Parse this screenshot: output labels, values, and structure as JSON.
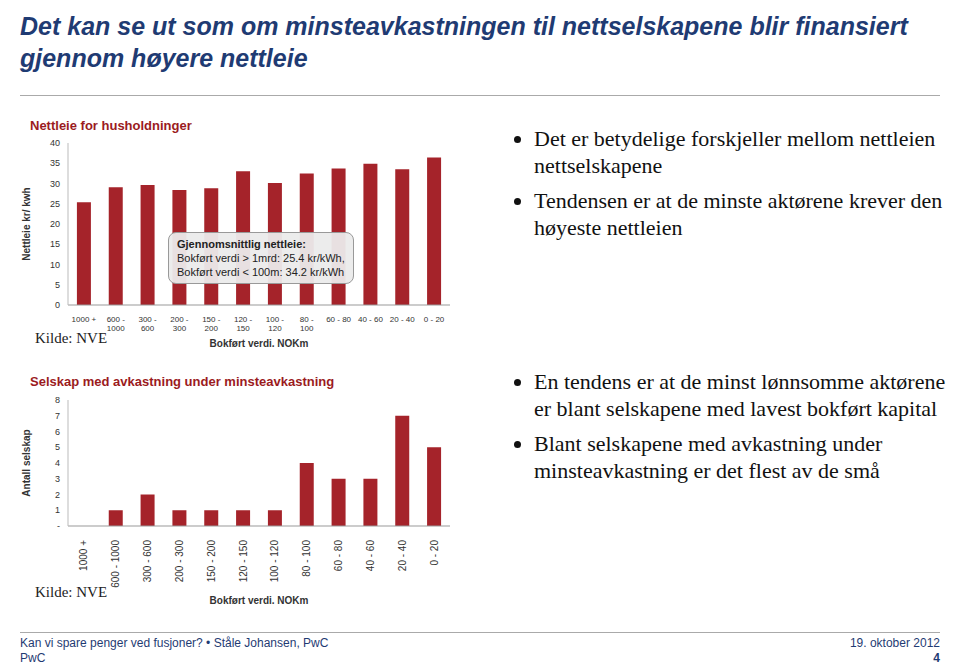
{
  "title": "Det kan se ut som om minsteavkastningen til nettselskapene blir finansiert gjennom høyere nettleie",
  "chart_data": [
    {
      "type": "bar",
      "title": "Nettleie for husholdninger",
      "y_label": "Nettleie kr/ kwh",
      "x_label": "Bokført verdi, NOKm",
      "source": "Kilde: NVE",
      "categories": [
        "1000 +",
        "600 - 1000",
        "300 - 600",
        "200 - 300",
        "150 - 200",
        "120 - 150",
        "100 - 120",
        "80 - 100",
        "60 - 80",
        "40 - 60",
        "20 - 40",
        "0 - 20"
      ],
      "values": [
        25.4,
        29.1,
        29.6,
        28.4,
        28.8,
        33,
        30.1,
        32.5,
        33.7,
        34.9,
        33.5,
        36.4
      ],
      "color": "#a5232a",
      "ylim": [
        0,
        40
      ],
      "yticks": [
        0,
        5,
        10,
        15,
        20,
        25,
        30,
        35,
        40
      ],
      "grid": false,
      "annotation": [
        "Gjennomsnittlig nettleie:",
        "Bokført verdi > 1mrd: 25.4 kr/kWh,",
        "Bokført verdi < 100m: 34.2 kr/kWh"
      ]
    },
    {
      "type": "bar",
      "title": "Selskap med avkastning  under minsteavkastning",
      "y_label": "Antall selskap",
      "x_label": "Bokført verdi, NOKm",
      "source": "Kilde: NVE",
      "categories": [
        "1000 +",
        "600 - 1000",
        "300 - 600",
        "200 - 300",
        "150 - 200",
        "120 - 150",
        "100 - 120",
        "80 - 100",
        "60 - 80",
        "40 - 60",
        "20 - 40",
        "0 - 20"
      ],
      "values": [
        0,
        1,
        2,
        1,
        1,
        1,
        1,
        4,
        3,
        3,
        7,
        5
      ],
      "color": "#a5232a",
      "ylim": [
        0,
        8
      ],
      "yticks": [
        {
          "value": 0,
          "label": "-"
        },
        1,
        2,
        3,
        4,
        5,
        6,
        7,
        8
      ],
      "grid": false
    }
  ],
  "bullets": [
    [
      "Det er betydelige forskjeller mellom nettleien nettselskapene",
      "Tendensen er at de minste aktørene krever den høyeste nettleien"
    ],
    [
      "En tendens er at de minst lønnsomme aktørene er blant selskapene med lavest bokført kapital",
      "Blant selskapene med avkastning under minsteavkastning er det flest av de små"
    ]
  ],
  "footer": {
    "left": "Kan vi spare penger ved fusjoner? • Ståle Johansen, PwC",
    "left2": "PwC",
    "right": "19. oktober 2012",
    "right2": "4"
  }
}
